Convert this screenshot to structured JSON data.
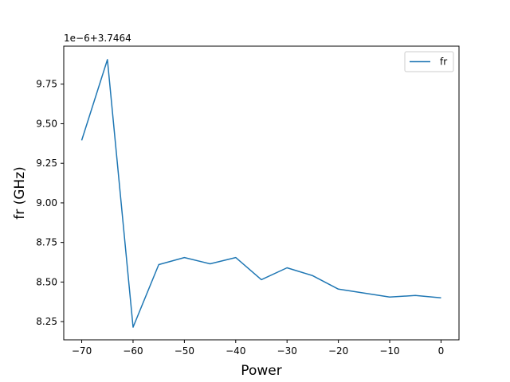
{
  "chart_data": {
    "type": "line",
    "xlabel": "Power",
    "ylabel": "fr (GHz)",
    "y_offset_label": "1e−6+3.7464",
    "xlim": [
      -73.5,
      3.5
    ],
    "ylim": [
      8.135,
      9.99
    ],
    "xticks": [
      -70,
      -60,
      -50,
      -40,
      -30,
      -20,
      -10,
      0
    ],
    "xtick_labels": [
      "−70",
      "−60",
      "−50",
      "−40",
      "−30",
      "−20",
      "−10",
      "0"
    ],
    "yticks": [
      8.25,
      8.5,
      8.75,
      9.0,
      9.25,
      9.5,
      9.75
    ],
    "ytick_labels": [
      "8.25",
      "8.50",
      "8.75",
      "9.00",
      "9.25",
      "9.50",
      "9.75"
    ],
    "grid": false,
    "legend_position": "top-right",
    "series": [
      {
        "name": "fr",
        "color": "#1f77b4",
        "x": [
          -70,
          -65,
          -60,
          -55,
          -50,
          -45,
          -40,
          -35,
          -30,
          -25,
          -20,
          -15,
          -10,
          -5,
          0
        ],
        "y": [
          9.395,
          9.905,
          8.215,
          8.61,
          8.655,
          8.615,
          8.655,
          8.515,
          8.59,
          8.54,
          8.455,
          8.43,
          8.405,
          8.415,
          8.4
        ]
      }
    ]
  }
}
